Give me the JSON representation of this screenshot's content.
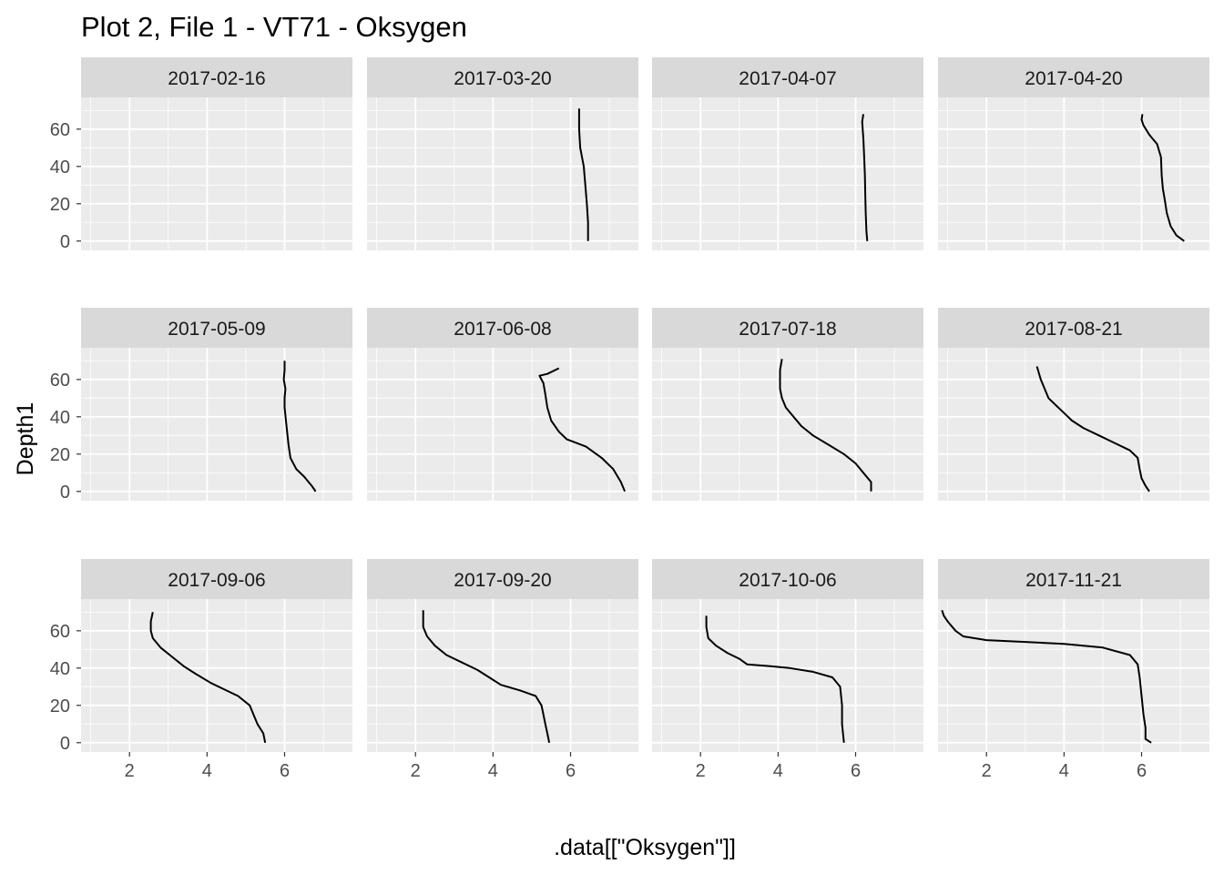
{
  "chart_data": {
    "type": "line",
    "title": "Plot 2, File 1 - VT71  -  Oksygen",
    "xlabel": ".data[[\"Oksygen\"]]",
    "ylabel": "Depth1",
    "xlim": [
      0.75,
      7.75
    ],
    "ylim": [
      77,
      -5
    ],
    "x_ticks": [
      "2",
      "4",
      "6"
    ],
    "x_tick_values": [
      2,
      4,
      6
    ],
    "y_ticks": [
      "0",
      "20",
      "40",
      "60"
    ],
    "y_tick_values": [
      0,
      20,
      40,
      60
    ],
    "y_reversed": true,
    "layout": "facet_wrap 3 rows x 4 columns",
    "grid": true,
    "colors": {
      "panel_bg": "#ebebeb",
      "strip_bg": "#d9d9d9",
      "grid": "#ffffff",
      "line": "#000000"
    },
    "facets": [
      {
        "label": "2017-02-16",
        "points": []
      },
      {
        "label": "2017-03-20",
        "points": [
          [
            6.45,
            0
          ],
          [
            6.45,
            10
          ],
          [
            6.42,
            20
          ],
          [
            6.38,
            30
          ],
          [
            6.34,
            40
          ],
          [
            6.25,
            50
          ],
          [
            6.22,
            60
          ],
          [
            6.22,
            71
          ]
        ]
      },
      {
        "label": "2017-04-07",
        "points": [
          [
            6.3,
            0
          ],
          [
            6.28,
            5
          ],
          [
            6.26,
            15
          ],
          [
            6.25,
            25
          ],
          [
            6.24,
            35
          ],
          [
            6.22,
            45
          ],
          [
            6.2,
            55
          ],
          [
            6.17,
            64
          ],
          [
            6.2,
            68
          ]
        ]
      },
      {
        "label": "2017-04-20",
        "points": [
          [
            7.1,
            0
          ],
          [
            6.9,
            3
          ],
          [
            6.75,
            8
          ],
          [
            6.65,
            15
          ],
          [
            6.6,
            22
          ],
          [
            6.55,
            28
          ],
          [
            6.52,
            35
          ],
          [
            6.5,
            45
          ],
          [
            6.4,
            52
          ],
          [
            6.2,
            57
          ],
          [
            6.05,
            62
          ],
          [
            6.0,
            65
          ],
          [
            6.02,
            68
          ]
        ]
      },
      {
        "label": "2017-05-09",
        "points": [
          [
            6.8,
            0
          ],
          [
            6.7,
            3
          ],
          [
            6.5,
            8
          ],
          [
            6.3,
            12
          ],
          [
            6.15,
            18
          ],
          [
            6.1,
            25
          ],
          [
            6.05,
            35
          ],
          [
            6.0,
            45
          ],
          [
            6.0,
            50
          ],
          [
            6.02,
            55
          ],
          [
            5.98,
            60
          ],
          [
            6.0,
            65
          ],
          [
            6.0,
            70
          ]
        ]
      },
      {
        "label": "2017-06-08",
        "points": [
          [
            7.4,
            0
          ],
          [
            7.3,
            5
          ],
          [
            7.1,
            12
          ],
          [
            6.8,
            18
          ],
          [
            6.4,
            24
          ],
          [
            5.9,
            28
          ],
          [
            5.7,
            32
          ],
          [
            5.5,
            38
          ],
          [
            5.4,
            45
          ],
          [
            5.35,
            52
          ],
          [
            5.3,
            58
          ],
          [
            5.2,
            62
          ],
          [
            5.4,
            63
          ],
          [
            5.7,
            66
          ]
        ]
      },
      {
        "label": "2017-07-18",
        "points": [
          [
            6.4,
            0
          ],
          [
            6.4,
            5
          ],
          [
            6.2,
            10
          ],
          [
            6.0,
            15
          ],
          [
            5.7,
            20
          ],
          [
            5.3,
            25
          ],
          [
            4.9,
            30
          ],
          [
            4.6,
            35
          ],
          [
            4.4,
            40
          ],
          [
            4.2,
            45
          ],
          [
            4.1,
            50
          ],
          [
            4.05,
            55
          ],
          [
            4.05,
            60
          ],
          [
            4.05,
            65
          ],
          [
            4.1,
            71
          ]
        ]
      },
      {
        "label": "2017-08-21",
        "points": [
          [
            6.2,
            0
          ],
          [
            6.1,
            3
          ],
          [
            6.0,
            7
          ],
          [
            5.95,
            12
          ],
          [
            5.9,
            18
          ],
          [
            5.7,
            22
          ],
          [
            5.3,
            26
          ],
          [
            4.9,
            30
          ],
          [
            4.5,
            34
          ],
          [
            4.2,
            38
          ],
          [
            4.0,
            42
          ],
          [
            3.8,
            46
          ],
          [
            3.6,
            50
          ],
          [
            3.5,
            55
          ],
          [
            3.4,
            60
          ],
          [
            3.3,
            67
          ]
        ]
      },
      {
        "label": "2017-09-06",
        "points": [
          [
            5.5,
            0
          ],
          [
            5.45,
            5
          ],
          [
            5.3,
            10
          ],
          [
            5.2,
            15
          ],
          [
            5.1,
            20
          ],
          [
            4.8,
            25
          ],
          [
            4.5,
            28
          ],
          [
            4.1,
            32
          ],
          [
            3.7,
            37
          ],
          [
            3.4,
            41
          ],
          [
            3.1,
            46
          ],
          [
            2.8,
            51
          ],
          [
            2.6,
            56
          ],
          [
            2.55,
            60
          ],
          [
            2.55,
            65
          ],
          [
            2.6,
            70
          ]
        ]
      },
      {
        "label": "2017-09-20",
        "points": [
          [
            5.45,
            0
          ],
          [
            5.4,
            5
          ],
          [
            5.35,
            10
          ],
          [
            5.3,
            15
          ],
          [
            5.25,
            20
          ],
          [
            5.1,
            25
          ],
          [
            4.7,
            28
          ],
          [
            4.2,
            31
          ],
          [
            3.9,
            35
          ],
          [
            3.6,
            39
          ],
          [
            3.2,
            43
          ],
          [
            2.8,
            47
          ],
          [
            2.5,
            52
          ],
          [
            2.3,
            57
          ],
          [
            2.2,
            62
          ],
          [
            2.2,
            71
          ]
        ]
      },
      {
        "label": "2017-10-06",
        "points": [
          [
            5.7,
            0
          ],
          [
            5.65,
            10
          ],
          [
            5.65,
            20
          ],
          [
            5.6,
            30
          ],
          [
            5.4,
            35
          ],
          [
            4.9,
            38
          ],
          [
            4.3,
            40
          ],
          [
            3.8,
            41
          ],
          [
            3.2,
            42
          ],
          [
            3.0,
            45
          ],
          [
            2.7,
            48
          ],
          [
            2.4,
            52
          ],
          [
            2.2,
            56
          ],
          [
            2.15,
            62
          ],
          [
            2.15,
            68
          ]
        ]
      },
      {
        "label": "2017-11-21",
        "points": [
          [
            6.25,
            0
          ],
          [
            6.1,
            2
          ],
          [
            6.1,
            8
          ],
          [
            6.05,
            15
          ],
          [
            6.0,
            25
          ],
          [
            5.95,
            35
          ],
          [
            5.9,
            42
          ],
          [
            5.7,
            47
          ],
          [
            5.0,
            51
          ],
          [
            4.0,
            53
          ],
          [
            3.0,
            54
          ],
          [
            2.0,
            55
          ],
          [
            1.4,
            57
          ],
          [
            1.2,
            60
          ],
          [
            1.0,
            65
          ],
          [
            0.9,
            68
          ],
          [
            0.85,
            71
          ]
        ]
      }
    ]
  }
}
